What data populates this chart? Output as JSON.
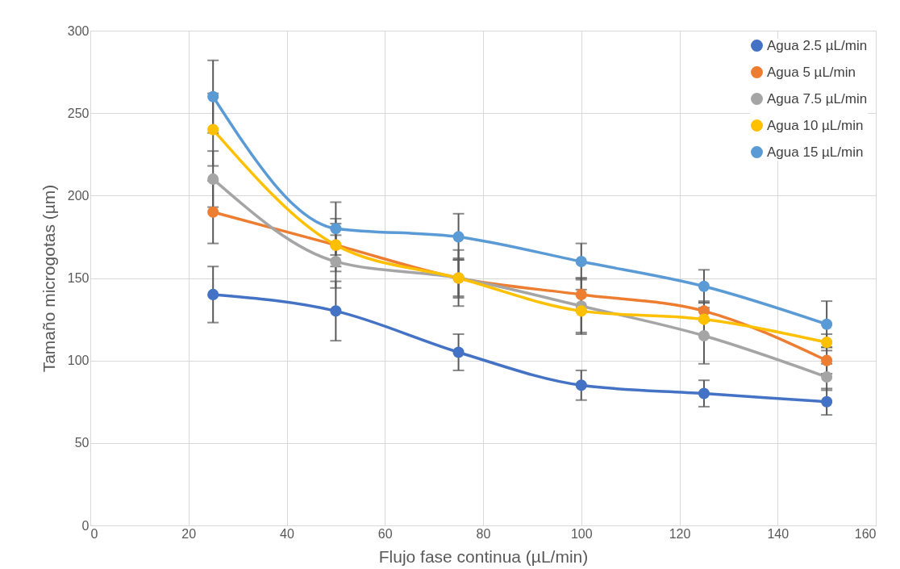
{
  "chart_data": {
    "type": "line",
    "xlabel": "Flujo fase continua (µL/min)",
    "ylabel": "Tamaño microgotas (µm)",
    "x": [
      25,
      50,
      75,
      100,
      125,
      150
    ],
    "series": [
      {
        "name": "Agua 2.5 µL/min",
        "color": "#4472c4",
        "values": [
          140,
          130,
          105,
          85,
          80,
          75
        ],
        "errors": [
          17,
          18,
          11,
          9,
          8,
          8
        ]
      },
      {
        "name": "Agua 5 µL/min",
        "color": "#ed7d31",
        "values": [
          190,
          170,
          150,
          140,
          130,
          100
        ],
        "errors": [
          19,
          16,
          12,
          10,
          6,
          8
        ]
      },
      {
        "name": "Agua 7.5 µL/min",
        "color": "#a5a5a5",
        "values": [
          210,
          160,
          150,
          133,
          115,
          90
        ],
        "errors": [
          17,
          16,
          17,
          17,
          17,
          8
        ]
      },
      {
        "name": "Agua 10 µL/min",
        "color": "#ffc000",
        "values": [
          240,
          170,
          150,
          130,
          125,
          111
        ],
        "errors": [
          22,
          13,
          11,
          13,
          10,
          5
        ]
      },
      {
        "name": "Agua 15 µL/min",
        "color": "#5b9bd5",
        "values": [
          260,
          180,
          175,
          160,
          145,
          122
        ],
        "errors": [
          22,
          16,
          14,
          11,
          10,
          14
        ]
      }
    ],
    "xlim": [
      0,
      160
    ],
    "xticks": [
      0,
      20,
      40,
      60,
      80,
      100,
      120,
      140,
      160
    ],
    "ylim": [
      0,
      300
    ],
    "yticks": [
      0,
      50,
      100,
      150,
      200,
      250,
      300
    ],
    "grid": true,
    "legend": "top right",
    "marker": "circle",
    "line_style": "solid"
  }
}
